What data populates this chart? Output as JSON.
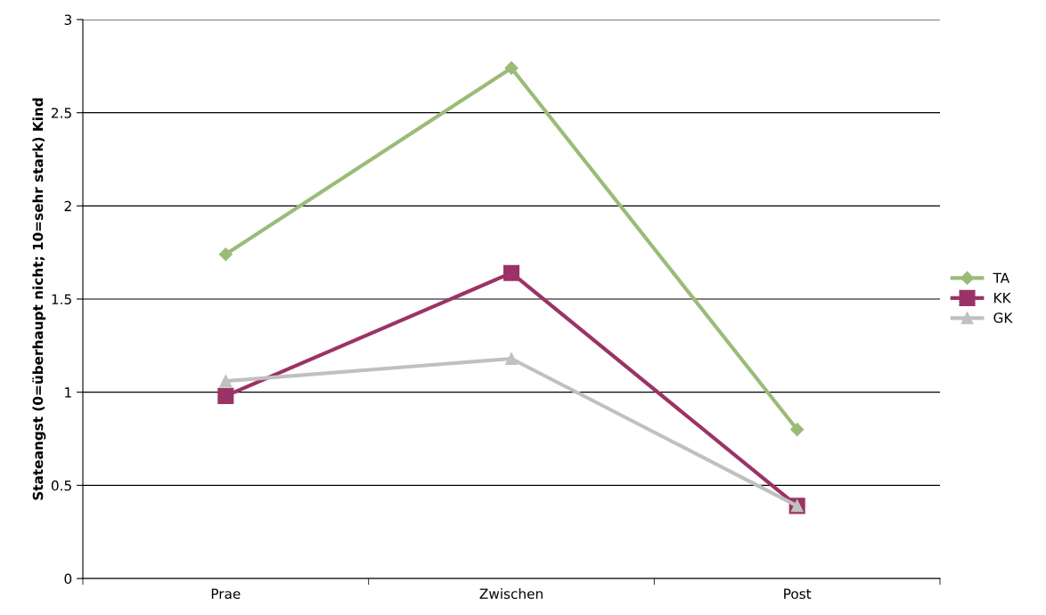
{
  "chart_data": {
    "type": "line",
    "ylabel": "Stateangst (0=überhaupt nicht; 10=sehr stark) Kind",
    "categories": [
      "Prae",
      "Zwischen",
      "Post"
    ],
    "series": [
      {
        "name": "TA",
        "color": "#9bbb78",
        "values": [
          1.74,
          2.74,
          0.8
        ],
        "marker": "diamond"
      },
      {
        "name": "KK",
        "color": "#9b3366",
        "values": [
          0.98,
          1.64,
          0.39
        ],
        "marker": "square"
      },
      {
        "name": "GK",
        "color": "#c0c0c0",
        "values": [
          1.06,
          1.18,
          0.39
        ],
        "marker": "triangle"
      }
    ],
    "ylim": [
      0,
      3
    ],
    "yticks": [
      0,
      0.5,
      1,
      1.5,
      2,
      2.5,
      3
    ],
    "grid": "y",
    "legend": "right",
    "line_style": "solid"
  }
}
